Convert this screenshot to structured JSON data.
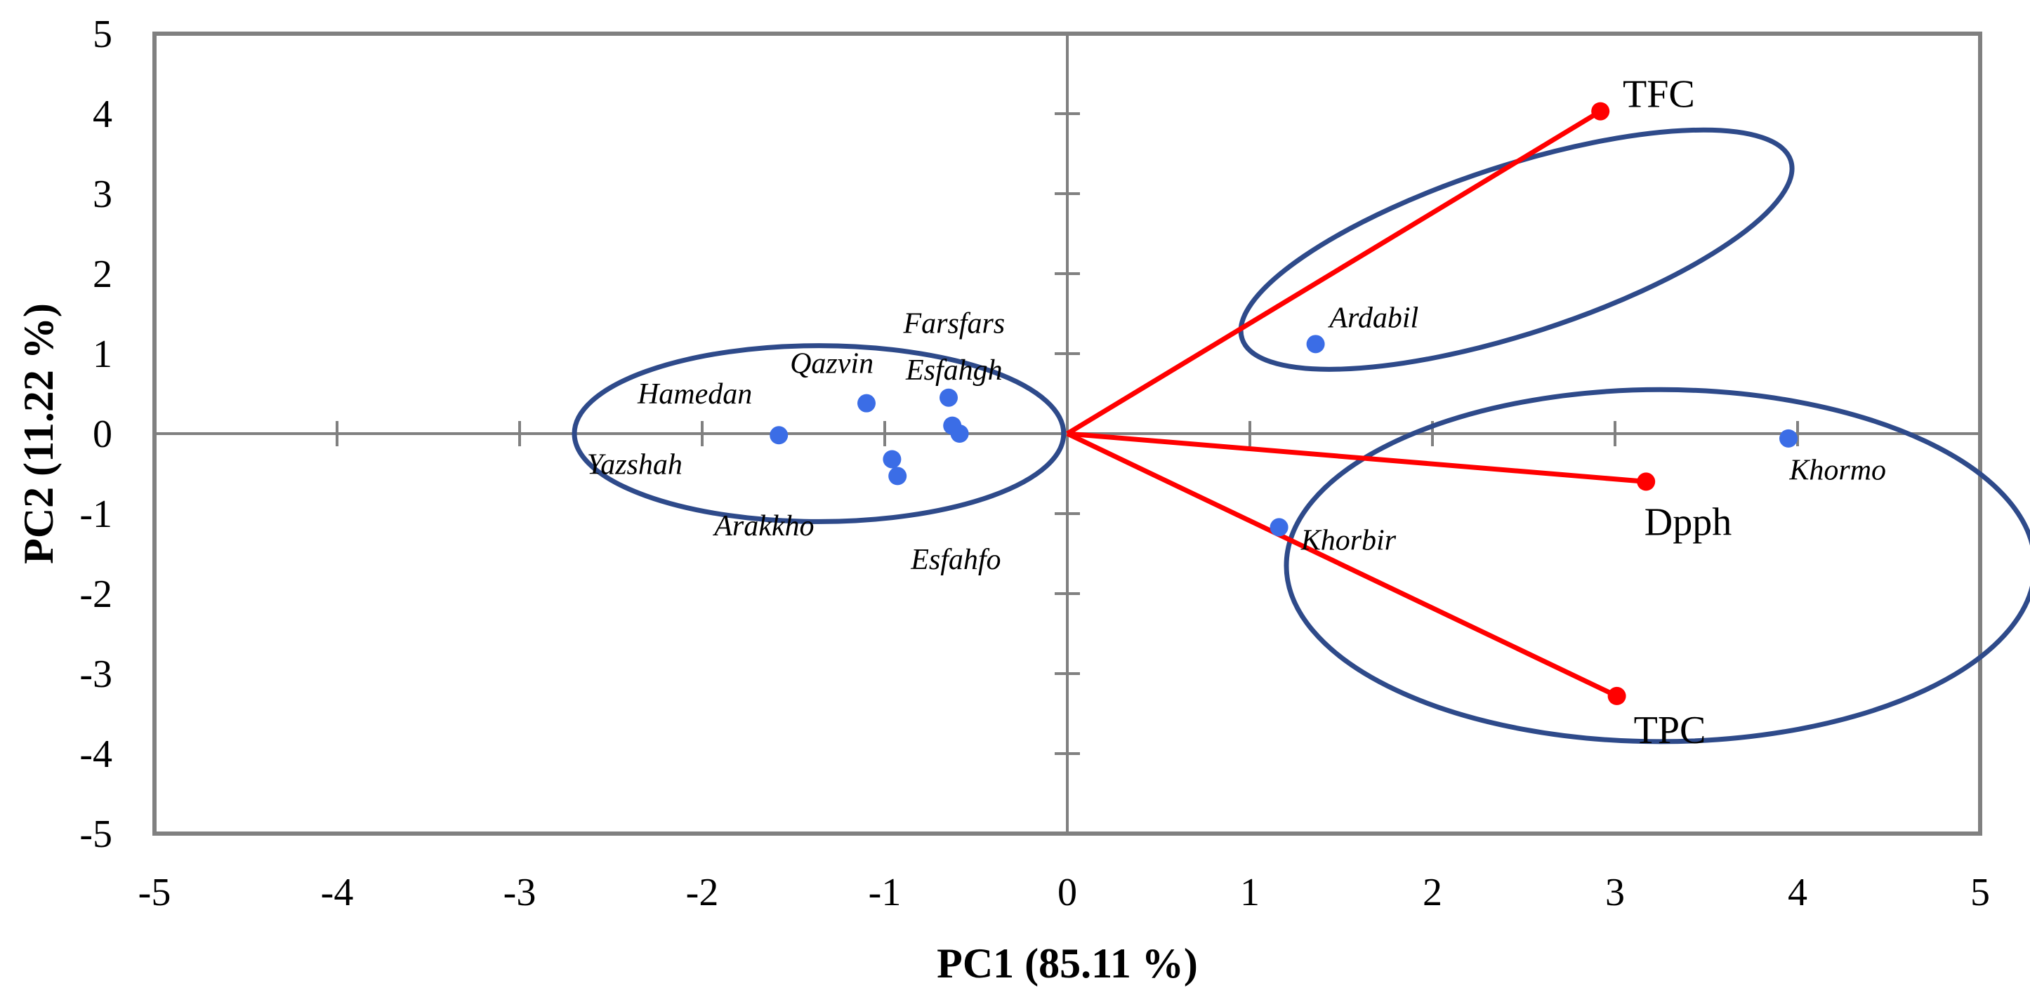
{
  "chart_data": {
    "type": "scatter",
    "title": "",
    "xlabel": "PC1 (85.11 %)",
    "ylabel": "PC2 (11.22 %)",
    "xlim": [
      -5,
      5
    ],
    "ylim": [
      -5,
      5
    ],
    "xticks": [
      -5,
      -4,
      -3,
      -2,
      -1,
      0,
      1,
      2,
      3,
      4,
      5
    ],
    "yticks": [
      5,
      4,
      3,
      2,
      1,
      0,
      -1,
      -2,
      -3,
      -4,
      -5
    ],
    "grid": false,
    "colors": {
      "points": "#3b6de6",
      "vectors": "#ff0000",
      "ellipses": "#2e4a8a",
      "axes": "#808080"
    },
    "points": [
      {
        "name": "Hamedan",
        "x": -1.58,
        "y": -0.02
      },
      {
        "name": "Qazvin",
        "x": -1.1,
        "y": 0.38
      },
      {
        "name": "Farsfars",
        "x": -0.65,
        "y": 0.45
      },
      {
        "name": "Esfahgh",
        "x": -0.63,
        "y": 0.1
      },
      {
        "name": "Yazshah",
        "x": -0.59,
        "y": 0.0
      },
      {
        "name": "Arakkho",
        "x": -0.96,
        "y": -0.32
      },
      {
        "name": "Esfahfo",
        "x": -0.93,
        "y": -0.53
      },
      {
        "name": "Ardabil",
        "x": 1.36,
        "y": 1.12
      },
      {
        "name": "Khorbir",
        "x": 1.16,
        "y": -1.17
      },
      {
        "name": "Khormo",
        "x": 3.95,
        "y": -0.06
      }
    ],
    "point_labels": [
      {
        "text": "Hamedan",
        "x": -2.04,
        "y": 0.5
      },
      {
        "text": "Qazvin",
        "x": -1.29,
        "y": 0.88
      },
      {
        "text": "Farsfars",
        "x": -0.62,
        "y": 1.38
      },
      {
        "text": "Esfahgh",
        "x": -0.62,
        "y": 0.8
      },
      {
        "text": "Yazshah",
        "x": -2.37,
        "y": -0.38
      },
      {
        "text": "Arakkho",
        "x": -1.66,
        "y": -1.15
      },
      {
        "text": "Esfahfo",
        "x": -0.61,
        "y": -1.57
      },
      {
        "text": "Ardabil",
        "x": 1.68,
        "y": 1.45
      },
      {
        "text": "Khorbir",
        "x": 1.54,
        "y": -1.33
      },
      {
        "text": "Khormo",
        "x": 4.22,
        "y": -0.45
      }
    ],
    "vectors": [
      {
        "name": "TFC",
        "x": 2.92,
        "y": 4.03
      },
      {
        "name": "Dpph",
        "x": 3.17,
        "y": -0.6
      },
      {
        "name": "TPC",
        "x": 3.01,
        "y": -3.28
      }
    ],
    "vector_labels": [
      {
        "text": "TFC",
        "x": 3.24,
        "y": 4.25
      },
      {
        "text": "Dpph",
        "x": 3.4,
        "y": -1.1
      },
      {
        "text": "TPC",
        "x": 3.3,
        "y": -3.7
      }
    ],
    "ellipses": [
      {
        "cx": -1.36,
        "cy": 0.0,
        "rx": 1.34,
        "ry": 1.1,
        "rotation": 0
      },
      {
        "cx": 2.46,
        "cy": 2.3,
        "rx": 1.58,
        "ry": 1.05,
        "rotation": 18
      },
      {
        "cx": 3.25,
        "cy": -1.65,
        "rx": 2.05,
        "ry": 2.2,
        "rotation": 0
      }
    ]
  }
}
